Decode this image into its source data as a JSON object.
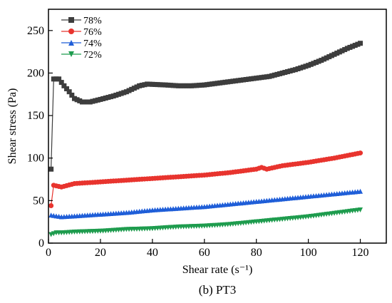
{
  "caption": "(b) PT3",
  "chart_data": {
    "type": "line",
    "xlabel": "Shear rate (s⁻¹)",
    "ylabel": "Shear stress (Pa)",
    "xlim": [
      0,
      130
    ],
    "ylim": [
      0,
      275
    ],
    "xticks": [
      0,
      20,
      40,
      60,
      80,
      100,
      120
    ],
    "yticks": [
      0,
      50,
      100,
      150,
      200,
      250
    ],
    "grid": false,
    "legend_position": "top-left",
    "series": [
      {
        "name": "78%",
        "color": "#3d3d3d",
        "marker": "square",
        "points": [
          [
            1,
            87
          ],
          [
            2,
            193
          ],
          [
            4,
            193
          ],
          [
            6,
            185
          ],
          [
            8,
            178
          ],
          [
            10,
            170
          ],
          [
            13,
            166
          ],
          [
            16,
            166
          ],
          [
            20,
            169
          ],
          [
            25,
            173
          ],
          [
            30,
            178
          ],
          [
            35,
            185
          ],
          [
            38,
            187
          ],
          [
            45,
            186
          ],
          [
            50,
            185
          ],
          [
            55,
            185
          ],
          [
            60,
            186
          ],
          [
            65,
            188
          ],
          [
            70,
            190
          ],
          [
            75,
            192
          ],
          [
            80,
            194
          ],
          [
            85,
            196
          ],
          [
            90,
            200
          ],
          [
            95,
            204
          ],
          [
            100,
            209
          ],
          [
            105,
            215
          ],
          [
            110,
            222
          ],
          [
            115,
            229
          ],
          [
            120,
            235
          ]
        ]
      },
      {
        "name": "76%",
        "color": "#e8342e",
        "marker": "circle",
        "points": [
          [
            1,
            44
          ],
          [
            2,
            68
          ],
          [
            5,
            66
          ],
          [
            10,
            70
          ],
          [
            15,
            71
          ],
          [
            20,
            72
          ],
          [
            30,
            74
          ],
          [
            40,
            76
          ],
          [
            50,
            78
          ],
          [
            60,
            80
          ],
          [
            70,
            83
          ],
          [
            80,
            87
          ],
          [
            82,
            89
          ],
          [
            84,
            87
          ],
          [
            90,
            91
          ],
          [
            100,
            95
          ],
          [
            110,
            100
          ],
          [
            120,
            106
          ]
        ]
      },
      {
        "name": "74%",
        "color": "#1f5ed8",
        "marker": "triangle-up",
        "points": [
          [
            1,
            33
          ],
          [
            3,
            32
          ],
          [
            5,
            31
          ],
          [
            10,
            32
          ],
          [
            20,
            34
          ],
          [
            30,
            36
          ],
          [
            40,
            39
          ],
          [
            50,
            41
          ],
          [
            60,
            43
          ],
          [
            70,
            46
          ],
          [
            80,
            49
          ],
          [
            90,
            52
          ],
          [
            100,
            55
          ],
          [
            110,
            58
          ],
          [
            120,
            61
          ]
        ]
      },
      {
        "name": "72%",
        "color": "#1e9c4e",
        "marker": "triangle-down",
        "points": [
          [
            1,
            10
          ],
          [
            3,
            12
          ],
          [
            5,
            12
          ],
          [
            10,
            13
          ],
          [
            20,
            14
          ],
          [
            30,
            16
          ],
          [
            40,
            17
          ],
          [
            50,
            19
          ],
          [
            60,
            20
          ],
          [
            70,
            22
          ],
          [
            80,
            25
          ],
          [
            90,
            28
          ],
          [
            100,
            31
          ],
          [
            110,
            35
          ],
          [
            120,
            39
          ]
        ]
      }
    ]
  }
}
